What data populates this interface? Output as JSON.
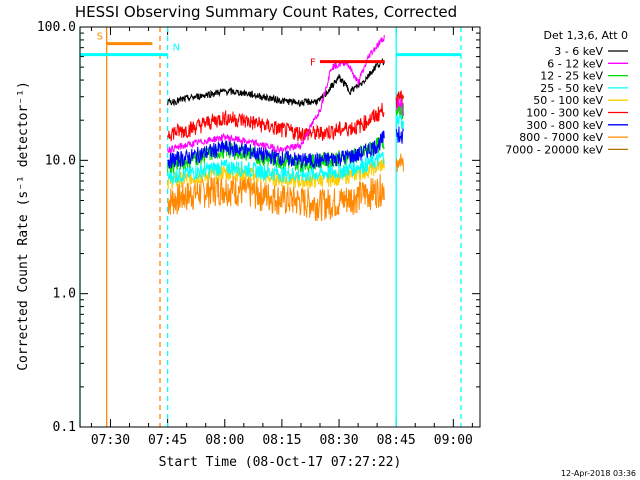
{
  "chart_data": {
    "type": "line",
    "title": "HESSI Observing Summary Count Rates, Corrected",
    "xlabel": "Start Time (08-Oct-17 07:27:22)",
    "ylabel": "Corrected Count Rate (s⁻¹ detector⁻¹)",
    "y_scale": "log",
    "ylim": [
      0.1,
      100
    ],
    "xlim": [
      "07:22",
      "09:07"
    ],
    "x_ticks": [
      "07:30",
      "07:45",
      "08:00",
      "08:15",
      "08:30",
      "08:45",
      "09:00"
    ],
    "y_ticks": [
      "0.1",
      "1.0",
      "10.0",
      "100.0"
    ],
    "legend_title": "Det 1,3,6, Att 0",
    "legend_position": "right",
    "footer": "12-Apr-2018 03:36",
    "data_gap_start": "07:45",
    "data_gap_end": "08:42",
    "series": [
      {
        "name": "3 - 6 keV",
        "color": "#000000",
        "points": [
          [
            "07:45",
            27
          ],
          [
            "07:50",
            29
          ],
          [
            "07:55",
            31
          ],
          [
            "08:00",
            33
          ],
          [
            "08:05",
            32
          ],
          [
            "08:10",
            30
          ],
          [
            "08:15",
            28
          ],
          [
            "08:20",
            27
          ],
          [
            "08:25",
            28
          ],
          [
            "08:30",
            42
          ],
          [
            "08:33",
            33
          ],
          [
            "08:36",
            38
          ],
          [
            "08:40",
            52
          ],
          [
            "08:42",
            55
          ]
        ]
      },
      {
        "name": "6 - 12 keV",
        "color": "#ff00ff",
        "points": [
          [
            "07:45",
            12
          ],
          [
            "07:50",
            13
          ],
          [
            "07:55",
            14
          ],
          [
            "08:00",
            15
          ],
          [
            "08:05",
            14
          ],
          [
            "08:10",
            13
          ],
          [
            "08:15",
            12
          ],
          [
            "08:20",
            13
          ],
          [
            "08:25",
            24
          ],
          [
            "08:28",
            50
          ],
          [
            "08:32",
            55
          ],
          [
            "08:35",
            38
          ],
          [
            "08:38",
            62
          ],
          [
            "08:42",
            85
          ]
        ]
      },
      {
        "name": "12 - 25 keV",
        "color": "#00dd00",
        "points": [
          [
            "07:45",
            9
          ],
          [
            "07:50",
            10
          ],
          [
            "07:55",
            11
          ],
          [
            "08:00",
            12
          ],
          [
            "08:05",
            11.5
          ],
          [
            "08:10",
            10.5
          ],
          [
            "08:15",
            10
          ],
          [
            "08:20",
            9.5
          ],
          [
            "08:25",
            10
          ],
          [
            "08:30",
            10.5
          ],
          [
            "08:35",
            11
          ],
          [
            "08:40",
            13
          ],
          [
            "08:42",
            14
          ]
        ]
      },
      {
        "name": "25 - 50 keV",
        "color": "#00ffff",
        "points": [
          [
            "07:45",
            7.5
          ],
          [
            "07:50",
            8
          ],
          [
            "07:55",
            8.5
          ],
          [
            "08:00",
            9
          ],
          [
            "08:05",
            8.7
          ],
          [
            "08:10",
            8.3
          ],
          [
            "08:15",
            8
          ],
          [
            "08:20",
            7.8
          ],
          [
            "08:25",
            8
          ],
          [
            "08:30",
            8.3
          ],
          [
            "08:35",
            9
          ],
          [
            "08:40",
            10
          ],
          [
            "08:42",
            11
          ]
        ]
      },
      {
        "name": "50 - 100 keV",
        "color": "#ffcc00",
        "points": [
          [
            "07:45",
            7
          ],
          [
            "07:50",
            7.3
          ],
          [
            "07:55",
            7.8
          ],
          [
            "08:00",
            8.2
          ],
          [
            "08:05",
            8
          ],
          [
            "08:10",
            7.6
          ],
          [
            "08:15",
            7.3
          ],
          [
            "08:20",
            7
          ],
          [
            "08:25",
            7.2
          ],
          [
            "08:30",
            7.5
          ],
          [
            "08:35",
            8
          ],
          [
            "08:40",
            9
          ],
          [
            "08:42",
            9.5
          ]
        ]
      },
      {
        "name": "100 - 300 keV",
        "color": "#ff0000",
        "points": [
          [
            "07:45",
            16
          ],
          [
            "07:50",
            17
          ],
          [
            "07:55",
            19
          ],
          [
            "08:00",
            21
          ],
          [
            "08:05",
            20
          ],
          [
            "08:10",
            18.5
          ],
          [
            "08:15",
            17
          ],
          [
            "08:20",
            16
          ],
          [
            "08:25",
            16
          ],
          [
            "08:30",
            17
          ],
          [
            "08:35",
            18
          ],
          [
            "08:40",
            22
          ],
          [
            "08:42",
            25
          ]
        ]
      },
      {
        "name": "300 - 800 keV",
        "color": "#0000ff",
        "points": [
          [
            "07:45",
            10
          ],
          [
            "07:50",
            10.5
          ],
          [
            "07:55",
            11.5
          ],
          [
            "08:00",
            12.5
          ],
          [
            "08:05",
            12
          ],
          [
            "08:10",
            11
          ],
          [
            "08:15",
            10.5
          ],
          [
            "08:20",
            10
          ],
          [
            "08:25",
            10
          ],
          [
            "08:30",
            10.5
          ],
          [
            "08:35",
            11
          ],
          [
            "08:40",
            13
          ],
          [
            "08:42",
            15
          ]
        ]
      },
      {
        "name": "800 - 7000 keV",
        "color": "#ff8800",
        "points": [
          [
            "07:45",
            5
          ],
          [
            "07:50",
            5.5
          ],
          [
            "07:55",
            6
          ],
          [
            "08:00",
            6.3
          ],
          [
            "08:05",
            6
          ],
          [
            "08:10",
            5.6
          ],
          [
            "08:15",
            5.2
          ],
          [
            "08:20",
            5
          ],
          [
            "08:25",
            4.8
          ],
          [
            "08:30",
            5
          ],
          [
            "08:35",
            5.5
          ],
          [
            "08:40",
            6
          ],
          [
            "08:42",
            6.5
          ]
        ]
      },
      {
        "name": "7000 - 20000 keV",
        "color": "#aa7700",
        "points": []
      }
    ],
    "after_gap_series": [
      {
        "color": "#ff0000",
        "points": [
          [
            "08:45",
            28
          ],
          [
            "08:46",
            30
          ],
          [
            "08:47",
            29
          ]
        ]
      },
      {
        "color": "#ff00ff",
        "points": [
          [
            "08:45",
            25
          ],
          [
            "08:46",
            26
          ],
          [
            "08:47",
            24
          ]
        ]
      },
      {
        "color": "#00dd00",
        "points": [
          [
            "08:45",
            22
          ],
          [
            "08:46",
            24
          ],
          [
            "08:47",
            23
          ]
        ]
      },
      {
        "color": "#00ffff",
        "points": [
          [
            "08:45",
            19
          ],
          [
            "08:46",
            20
          ],
          [
            "08:47",
            19
          ]
        ]
      },
      {
        "color": "#0000ff",
        "points": [
          [
            "08:45",
            15
          ],
          [
            "08:46",
            16
          ],
          [
            "08:47",
            15
          ]
        ]
      },
      {
        "color": "#ff8800",
        "points": [
          [
            "08:45",
            9
          ],
          [
            "08:46",
            10
          ],
          [
            "08:47",
            9
          ]
        ]
      }
    ],
    "annotations": [
      {
        "label": "S",
        "color": "#ff8800",
        "bar": [
          "07:29",
          "07:41"
        ],
        "level": 75
      },
      {
        "label": "N",
        "color": "#00ffff",
        "bar": [
          "07:22",
          "07:45"
        ],
        "level": 62
      },
      {
        "label": "F",
        "color": "#ff0000",
        "bar": [
          "08:25",
          "08:42"
        ],
        "level": 55
      },
      {
        "label": "",
        "color": "#00ffff",
        "bar": [
          "08:45",
          "09:02"
        ],
        "level": 62
      }
    ],
    "vertical_lines": [
      {
        "time": "07:22",
        "color": "#00ffff",
        "style": "solid"
      },
      {
        "time": "07:29",
        "color": "#ff8800",
        "style": "solid"
      },
      {
        "time": "07:43",
        "color": "#ff8800",
        "style": "dashed"
      },
      {
        "time": "07:45",
        "color": "#00ffff",
        "style": "dashed"
      },
      {
        "time": "08:45",
        "color": "#00ffff",
        "style": "solid"
      },
      {
        "time": "09:02",
        "color": "#00ffff",
        "style": "dashed"
      }
    ]
  }
}
